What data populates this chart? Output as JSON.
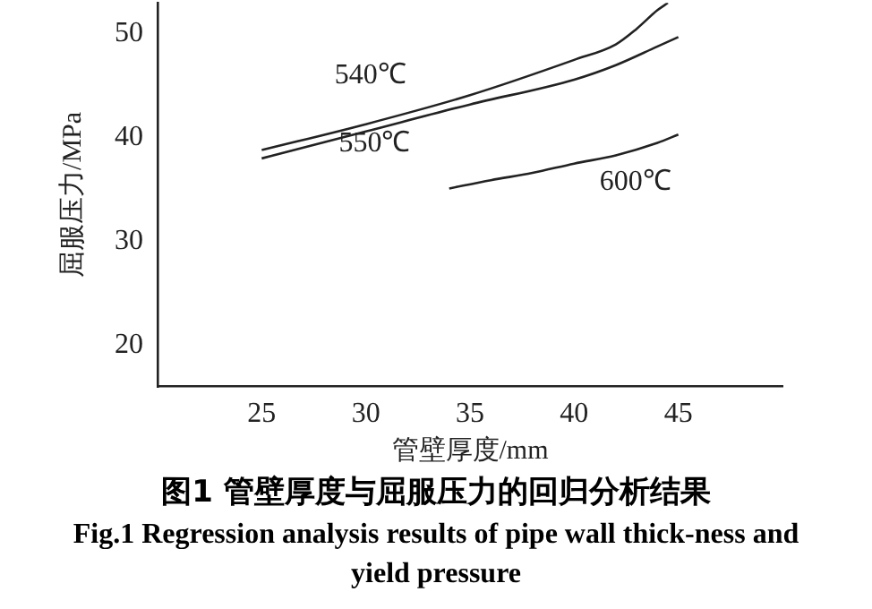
{
  "chart_data": {
    "type": "line",
    "title": "图1 管壁厚度与屈服压力的回归分析结果",
    "subtitle": "Fig.1 Regression analysis results of pipe wall thick-ness and yield pressure",
    "xlabel": "管壁厚度/mm",
    "ylabel": "屈服压力/MPa",
    "x": [
      25,
      30,
      35,
      40,
      42,
      43,
      44,
      44.5
    ],
    "series": [
      {
        "name": "540℃",
        "color": "#222222",
        "values": [
          38.8,
          41.3,
          44.1,
          47.5,
          49,
          50.5,
          52.3,
          53
        ]
      },
      {
        "name": "550℃",
        "color": "#222222",
        "x": [
          25,
          30,
          35,
          40,
          42,
          44,
          45
        ],
        "values": [
          38,
          40.6,
          43.2,
          45.6,
          47,
          48.8,
          49.7
        ]
      },
      {
        "name": "600℃",
        "color": "#222222",
        "x": [
          34,
          36,
          38,
          40,
          42,
          44,
          45
        ],
        "values": [
          35.1,
          35.9,
          36.6,
          37.5,
          38.3,
          39.5,
          40.3
        ]
      }
    ],
    "xlim": [
      20,
      50
    ],
    "xticks": [
      25,
      30,
      35,
      40,
      45
    ],
    "ylim": [
      16,
      53
    ],
    "yticks": [
      20,
      30,
      40,
      50
    ],
    "grid": false,
    "legend": false,
    "marker": "none",
    "line_style": "solid"
  }
}
